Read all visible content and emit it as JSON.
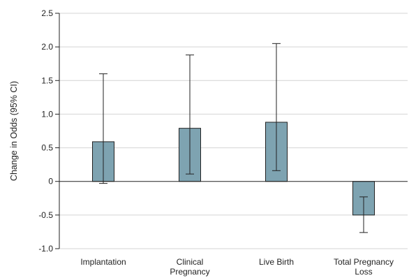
{
  "chart_data": {
    "type": "bar",
    "categories": [
      [
        "Implantation"
      ],
      [
        "Clinical",
        "Pregnancy"
      ],
      [
        "Live Birth"
      ],
      [
        "Total Pregnancy",
        "Loss"
      ]
    ],
    "values": [
      0.59,
      0.79,
      0.88,
      -0.5
    ],
    "ci_lower": [
      -0.03,
      0.11,
      0.16,
      -0.76
    ],
    "ci_upper": [
      1.6,
      1.88,
      2.05,
      -0.23
    ],
    "ylabel": "Change in Odds (95% CI)",
    "ylim": [
      -1.0,
      2.5
    ],
    "yticks": [
      "-1.0",
      "-0.5",
      "0",
      "0.5",
      "1.0",
      "1.5",
      "2.0",
      "2.5"
    ],
    "grid": true,
    "bar_color": "#7ea3b1",
    "bar_stroke": "#222222",
    "grid_color": "#d4d4d4"
  }
}
